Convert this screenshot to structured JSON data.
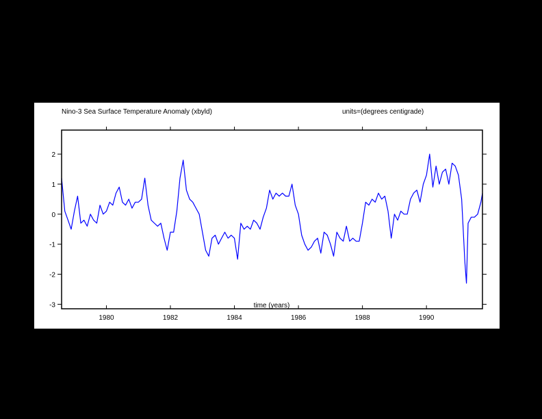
{
  "page": {
    "background": "#000000",
    "panel_color": "#ffffff"
  },
  "chart_data": {
    "type": "line",
    "title": "Nino-3 Sea Surface Temperature Anomaly (xbyld)",
    "units": "units=(degrees centigrade)",
    "xlabel": "time (years)",
    "ylabel": "",
    "xlim": [
      1978.6,
      1991.75
    ],
    "ylim": [
      -3.15,
      2.8
    ],
    "x_ticks": [
      "1980",
      "1982",
      "1984",
      "1986",
      "1988",
      "1990"
    ],
    "x_tick_values": [
      1980,
      1982,
      1984,
      1986,
      1988,
      1990
    ],
    "y_ticks": [
      "2",
      "1",
      "0",
      "-1",
      "-2",
      "-3"
    ],
    "y_tick_values": [
      2,
      1,
      0,
      -1,
      -2,
      -3
    ],
    "grid": false,
    "line_color": "#0000ff",
    "series": [
      {
        "name": "",
        "x": [
          1978.6,
          1978.7,
          1978.8,
          1978.9,
          1979.0,
          1979.1,
          1979.2,
          1979.3,
          1979.4,
          1979.5,
          1979.6,
          1979.7,
          1979.8,
          1979.9,
          1980.0,
          1980.1,
          1980.2,
          1980.3,
          1980.4,
          1980.5,
          1980.6,
          1980.7,
          1980.8,
          1980.9,
          1981.0,
          1981.1,
          1981.2,
          1981.3,
          1981.4,
          1981.5,
          1981.6,
          1981.7,
          1981.8,
          1981.9,
          1982.0,
          1982.1,
          1982.2,
          1982.3,
          1982.4,
          1982.5,
          1982.6,
          1982.7,
          1982.8,
          1982.9,
          1983.0,
          1983.1,
          1983.2,
          1983.3,
          1983.4,
          1983.5,
          1983.6,
          1983.7,
          1983.8,
          1983.9,
          1984.0,
          1984.1,
          1984.2,
          1984.3,
          1984.4,
          1984.5,
          1984.6,
          1984.7,
          1984.8,
          1984.9,
          1985.0,
          1985.1,
          1985.2,
          1985.3,
          1985.4,
          1985.5,
          1985.6,
          1985.7,
          1985.8,
          1985.9,
          1986.0,
          1986.1,
          1986.2,
          1986.3,
          1986.4,
          1986.5,
          1986.6,
          1986.7,
          1986.8,
          1986.9,
          1987.0,
          1987.1,
          1987.2,
          1987.3,
          1987.4,
          1987.5,
          1987.6,
          1987.7,
          1987.8,
          1987.9,
          1988.0,
          1988.1,
          1988.2,
          1988.3,
          1988.4,
          1988.5,
          1988.6,
          1988.7,
          1988.8,
          1988.9,
          1989.0,
          1989.1,
          1989.2,
          1989.3,
          1989.4,
          1989.5,
          1989.6,
          1989.7,
          1989.8,
          1989.9,
          1990.0,
          1990.1,
          1990.2,
          1990.3,
          1990.4,
          1990.5,
          1990.6,
          1990.7,
          1990.8,
          1990.9,
          1991.0,
          1991.1,
          1991.2,
          1991.25,
          1991.3,
          1991.4,
          1991.5,
          1991.6,
          1991.7,
          1991.75
        ],
        "values": [
          1.2,
          0.1,
          -0.2,
          -0.5,
          0.1,
          0.6,
          -0.3,
          -0.2,
          -0.4,
          0.0,
          -0.2,
          -0.3,
          0.3,
          0.0,
          0.1,
          0.4,
          0.3,
          0.7,
          0.9,
          0.4,
          0.3,
          0.5,
          0.2,
          0.4,
          0.4,
          0.5,
          1.2,
          0.3,
          -0.2,
          -0.3,
          -0.4,
          -0.3,
          -0.8,
          -1.2,
          -0.6,
          -0.6,
          0.1,
          1.2,
          1.8,
          0.8,
          0.5,
          0.4,
          0.2,
          0.0,
          -0.6,
          -1.2,
          -1.4,
          -0.8,
          -0.7,
          -1.0,
          -0.8,
          -0.6,
          -0.8,
          -0.7,
          -0.8,
          -1.5,
          -0.3,
          -0.5,
          -0.4,
          -0.5,
          -0.2,
          -0.3,
          -0.5,
          -0.1,
          0.2,
          0.8,
          0.5,
          0.7,
          0.6,
          0.7,
          0.6,
          0.6,
          1.0,
          0.3,
          0.0,
          -0.7,
          -1.0,
          -1.2,
          -1.1,
          -0.9,
          -0.8,
          -1.3,
          -0.6,
          -0.7,
          -1.0,
          -1.4,
          -0.6,
          -0.8,
          -0.9,
          -0.4,
          -0.9,
          -0.8,
          -0.9,
          -0.9,
          -0.3,
          0.4,
          0.3,
          0.5,
          0.4,
          0.7,
          0.5,
          0.6,
          0.1,
          -0.8,
          0.0,
          -0.2,
          0.1,
          0.0,
          0.0,
          0.5,
          0.7,
          0.8,
          0.4,
          1.0,
          1.3,
          2.0,
          0.9,
          1.6,
          1.0,
          1.4,
          1.5,
          1.0,
          1.7,
          1.6,
          1.3,
          0.5,
          -1.6,
          -2.3,
          -0.3,
          -0.1,
          -0.1,
          0.0,
          0.4,
          0.7
        ]
      }
    ]
  }
}
